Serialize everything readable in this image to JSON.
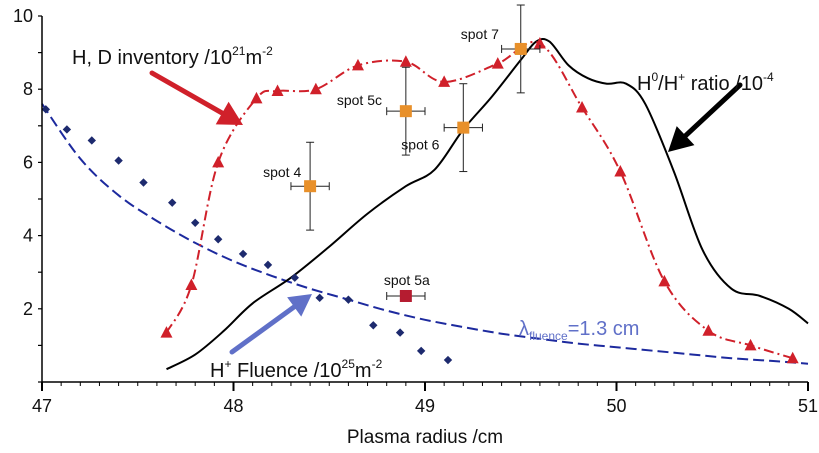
{
  "chart_data": {
    "type": "scatter",
    "xlabel": "Plasma radius /cm",
    "ylabel": "",
    "xlim": [
      47,
      51
    ],
    "ylim": [
      0,
      10
    ],
    "x_ticks": [
      "47",
      "48",
      "49",
      "50",
      "51"
    ],
    "y_ticks": [
      "10",
      "8",
      "6",
      "4",
      "2"
    ],
    "grid": false,
    "series": [
      {
        "name": "H, D inventory /10^21 m^-2",
        "label_text": [
          "H, D inventory /10",
          "21",
          "m",
          "-2"
        ],
        "color": "#d0202a",
        "marker": "triangle",
        "line": "dash-dot",
        "x": [
          47.65,
          47.78,
          47.92,
          48.12,
          48.23,
          48.43,
          48.65,
          48.9,
          49.1,
          49.38,
          49.6,
          49.82,
          50.02,
          50.25,
          50.48,
          50.7,
          50.92
        ],
        "y": [
          1.35,
          2.65,
          6.0,
          7.75,
          7.95,
          8.0,
          8.65,
          8.75,
          8.2,
          8.7,
          9.25,
          7.5,
          5.75,
          2.75,
          1.4,
          1.0,
          0.65
        ]
      },
      {
        "name": "H0/H+ ratio /10^-4",
        "label_text": [
          "H",
          "0",
          "/H",
          "+",
          " ratio /10",
          "-4"
        ],
        "color": "#000000",
        "line": "solid",
        "x": [
          47.65,
          47.8,
          47.95,
          48.1,
          48.3,
          48.5,
          48.7,
          48.9,
          49.05,
          49.2,
          49.35,
          49.5,
          49.58,
          49.65,
          49.75,
          49.85,
          49.95,
          50.05,
          50.15,
          50.3,
          50.45,
          50.6,
          50.75,
          50.9,
          51.0
        ],
        "y": [
          0.35,
          0.75,
          1.4,
          2.15,
          2.85,
          3.7,
          4.6,
          5.35,
          5.8,
          6.9,
          7.8,
          8.8,
          9.3,
          9.3,
          8.65,
          8.3,
          8.15,
          8.15,
          7.6,
          5.75,
          3.6,
          2.55,
          2.35,
          2.0,
          1.6
        ]
      },
      {
        "name": "H+ Fluence /10^25 m^-2",
        "label_text": [
          "H",
          "+",
          " Fluence /10",
          "25",
          "m",
          "-2"
        ],
        "color": "#1d2a6e",
        "marker": "diamond",
        "x": [
          47.02,
          47.13,
          47.26,
          47.4,
          47.53,
          47.68,
          47.8,
          47.92,
          48.05,
          48.18,
          48.32,
          48.45,
          48.6,
          48.73,
          48.87,
          48.98,
          49.12
        ],
        "y": [
          7.45,
          6.9,
          6.6,
          6.05,
          5.45,
          4.9,
          4.35,
          3.9,
          3.5,
          3.2,
          2.85,
          2.3,
          2.25,
          1.55,
          1.35,
          0.85,
          0.6
        ]
      },
      {
        "name": "fit",
        "label_text": [
          "λ",
          "fluence",
          "=1.3 cm"
        ],
        "color": "#1d2a9e",
        "line": "dashed",
        "x": [
          47.0,
          47.2,
          47.4,
          47.6,
          47.8,
          48.0,
          48.2,
          48.4,
          48.6,
          48.8,
          49.0,
          49.2,
          49.4,
          49.6,
          49.8,
          50.0,
          50.2,
          50.4,
          50.6,
          50.8,
          51.0
        ],
        "y": [
          7.6,
          6.1,
          5.1,
          4.4,
          3.8,
          3.3,
          2.9,
          2.55,
          2.25,
          1.95,
          1.7,
          1.5,
          1.32,
          1.18,
          1.05,
          0.95,
          0.85,
          0.75,
          0.65,
          0.58,
          0.5
        ]
      }
    ],
    "spots": [
      {
        "label": "spot 4",
        "x": 48.4,
        "y": 5.35,
        "xerr": 0.1,
        "yerr": 1.2,
        "color": "#e8902a"
      },
      {
        "label": "spot 5c",
        "x": 48.9,
        "y": 7.4,
        "xerr": 0.1,
        "yerr": 1.2,
        "color": "#e8902a"
      },
      {
        "label": "spot 6",
        "x": 49.2,
        "y": 6.95,
        "xerr": 0.1,
        "yerr": 1.2,
        "color": "#e8902a"
      },
      {
        "label": "spot 7",
        "x": 49.5,
        "y": 9.1,
        "xerr": 0.1,
        "yerr": 1.2,
        "color": "#e8902a"
      },
      {
        "label": "spot 5a",
        "x": 48.9,
        "y": 2.35,
        "xerr": 0.1,
        "yerr": 0.0,
        "color": "#b51c30"
      }
    ],
    "arrow_colors": {
      "inventory": "#d0202a",
      "ratio": "#000000",
      "fluence": "#6070c8"
    }
  }
}
